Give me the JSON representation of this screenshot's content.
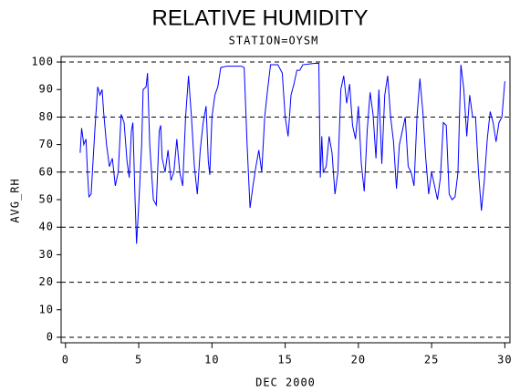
{
  "chart_data": {
    "type": "line",
    "title": "RELATIVE HUMIDITY",
    "subtitle": "STATION=OYSM",
    "x_label": "DEC 2000",
    "y_label": "AVG_RH",
    "xlim": [
      -0.3,
      30.35
    ],
    "ylim": [
      -2,
      102
    ],
    "xticks": [
      0,
      5,
      10,
      15,
      20,
      25,
      30
    ],
    "yticks": [
      0,
      10,
      20,
      30,
      40,
      50,
      60,
      70,
      80,
      90,
      100
    ],
    "ygrid": [
      0,
      20,
      40,
      60,
      80,
      100
    ],
    "series": [
      {
        "name": "AVG_RH",
        "color": "#0000ff",
        "x": [
          1.0,
          1.1,
          1.25,
          1.4,
          1.5,
          1.6,
          1.75,
          2.0,
          2.2,
          2.35,
          2.5,
          2.6,
          2.8,
          3.0,
          3.2,
          3.4,
          3.6,
          3.8,
          4.0,
          4.2,
          4.35,
          4.5,
          4.6,
          4.75,
          4.85,
          5.0,
          5.2,
          5.3,
          5.5,
          5.6,
          5.75,
          6.0,
          6.2,
          6.4,
          6.5,
          6.6,
          6.8,
          7.0,
          7.2,
          7.4,
          7.6,
          7.8,
          8.0,
          8.2,
          8.4,
          8.6,
          8.8,
          9.0,
          9.2,
          9.4,
          9.6,
          9.75,
          9.85,
          10.0,
          10.2,
          10.4,
          10.6,
          11.0,
          12.0,
          12.2,
          12.4,
          12.6,
          12.8,
          13.0,
          13.2,
          13.4,
          13.6,
          13.8,
          14.0,
          14.5,
          14.8,
          15.0,
          15.2,
          15.4,
          15.6,
          15.8,
          16.0,
          16.2,
          17.0,
          17.3,
          17.4,
          17.5,
          17.6,
          17.8,
          18.0,
          18.2,
          18.4,
          18.6,
          18.8,
          19.0,
          19.2,
          19.4,
          19.6,
          19.8,
          20.0,
          20.2,
          20.4,
          20.6,
          20.8,
          21.0,
          21.2,
          21.4,
          21.6,
          21.8,
          22.0,
          22.2,
          22.4,
          22.6,
          22.8,
          23.0,
          23.2,
          23.4,
          23.6,
          23.8,
          24.0,
          24.2,
          24.4,
          24.6,
          24.8,
          25.0,
          25.2,
          25.4,
          25.6,
          25.8,
          26.0,
          26.2,
          26.4,
          26.6,
          26.8,
          27.0,
          27.2,
          27.4,
          27.6,
          27.8,
          28.0,
          28.2,
          28.4,
          28.6,
          28.8,
          29.0,
          29.2,
          29.4,
          29.6,
          29.8,
          30.0
        ],
        "values": [
          67,
          76,
          70,
          72,
          60,
          51,
          52,
          75,
          91,
          88,
          90,
          82,
          70,
          62,
          65,
          55,
          60,
          81,
          78,
          64,
          58,
          75,
          78,
          50,
          34,
          48,
          70,
          90,
          91,
          96,
          70,
          50,
          48,
          75,
          77,
          65,
          60,
          68,
          57,
          60,
          72,
          60,
          55,
          80,
          95,
          80,
          62,
          52,
          68,
          78,
          84,
          64,
          59,
          80,
          88,
          91,
          98,
          98.5,
          98.5,
          98,
          70,
          47,
          55,
          62,
          68,
          60,
          80,
          90,
          99,
          99,
          96,
          80,
          73,
          88,
          92,
          97,
          97,
          99,
          99.5,
          99.5,
          58,
          73,
          60,
          62,
          73,
          67,
          52,
          60,
          90,
          95,
          85,
          92,
          77,
          72,
          84,
          63,
          53,
          75,
          89,
          81,
          65,
          90,
          63,
          88,
          95,
          80,
          71,
          54,
          70,
          75,
          80,
          62,
          60,
          55,
          80,
          94,
          82,
          65,
          52,
          60,
          55,
          50,
          58,
          78,
          77,
          52,
          50,
          51,
          60,
          99,
          90,
          73,
          88,
          80,
          80,
          60,
          46,
          57,
          72,
          82,
          78,
          71,
          78,
          80,
          93
        ]
      }
    ]
  }
}
